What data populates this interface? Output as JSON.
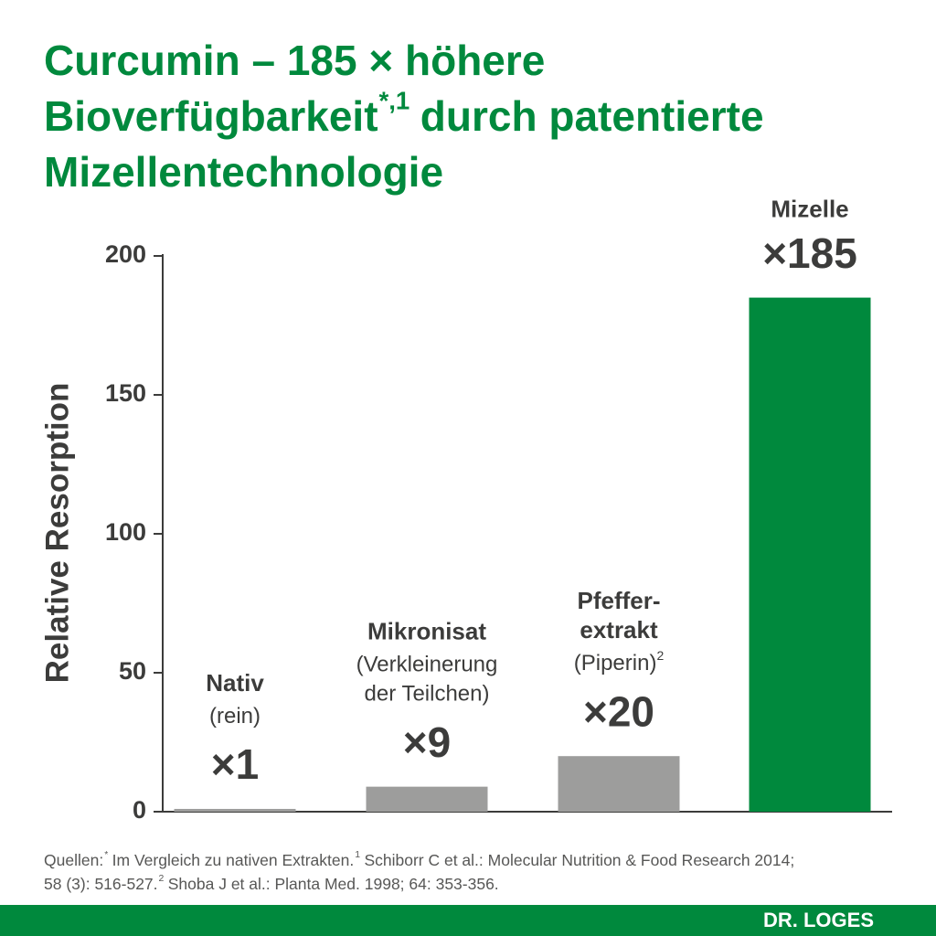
{
  "chart_data": {
    "type": "bar",
    "title_lines": [
      [
        {
          "text": "Curcumin – 185 × höhere"
        }
      ],
      [
        {
          "text": "Bioverfügbarkeit"
        },
        {
          "sup": "*,1"
        },
        {
          "text": "durch patentierte"
        }
      ],
      [
        {
          "text": "Mizellentechnologie"
        }
      ]
    ],
    "y_label": "Relative Resorption",
    "categories": [
      [
        "Nativ"
      ],
      [
        "Mikronisat"
      ],
      [
        "Pfeffer-",
        "extrakt"
      ],
      [
        "Mizelle"
      ]
    ],
    "details": [
      [
        {
          "text": "(rein)"
        }
      ],
      [
        {
          "text": "(Verkleinerung"
        },
        {
          "text": "der Teilchen)"
        }
      ],
      [
        {
          "text": "(Piperin)",
          "sup": "2"
        }
      ],
      null
    ],
    "values": [
      1,
      9,
      20,
      185
    ],
    "value_labels": [
      "×1",
      "×9",
      "×20",
      "×185"
    ],
    "colors": [
      "#9d9d9c",
      "#9d9d9c",
      "#9d9d9c",
      "#00893d"
    ],
    "ylim": [
      0,
      200
    ],
    "yticks": [
      0,
      50,
      100,
      150,
      200
    ],
    "sources": [
      [
        {
          "text": "Quellen:"
        },
        {
          "sup": "*"
        },
        {
          "text": "Im Vergleich zu nativen Extrakten."
        },
        {
          "sup": "1"
        },
        {
          "text": "Schiborr C et al.: Molecular Nutrition & Food Research 2014;"
        }
      ],
      [
        {
          "text": "58 (3): 516-527."
        },
        {
          "sup": "2"
        },
        {
          "text": "Shoba J et al.: Planta Med. 1998; 64: 353-356."
        }
      ]
    ],
    "brand": "DR. LOGES"
  }
}
